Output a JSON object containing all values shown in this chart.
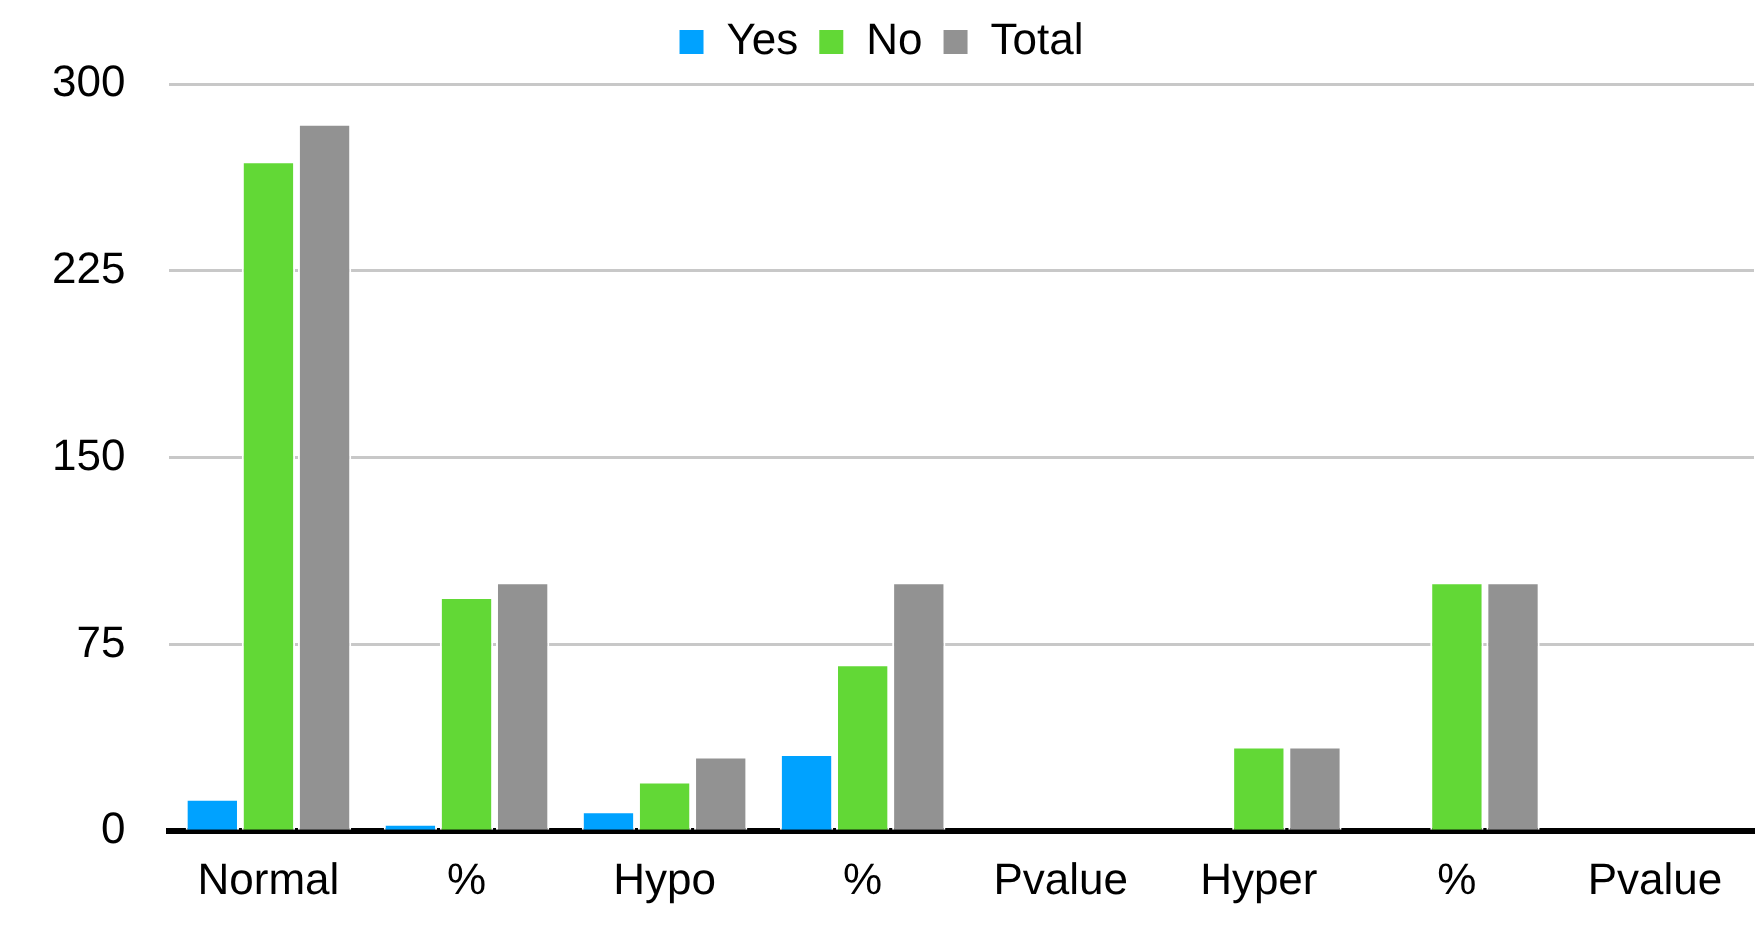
{
  "chart_data": {
    "type": "bar",
    "categories": [
      "Normal",
      "%",
      "Hypo",
      "%",
      "Pvalue",
      "Hyper",
      "%",
      "Pvalue"
    ],
    "series": [
      {
        "name": "Yes",
        "color": "#00a2ff",
        "values": [
          13,
          3,
          8,
          31,
          0,
          0,
          0,
          0
        ]
      },
      {
        "name": "No",
        "color": "#62d836",
        "values": [
          269,
          94,
          20,
          67,
          0,
          34,
          100,
          0
        ]
      },
      {
        "name": "Total",
        "color": "#929292",
        "values": [
          284,
          100,
          30,
          100,
          0,
          34,
          100,
          0
        ]
      }
    ],
    "ylim": [
      0,
      300
    ],
    "yticks": [
      0,
      75,
      150,
      225,
      300
    ],
    "grid": "y",
    "legend": "top"
  }
}
